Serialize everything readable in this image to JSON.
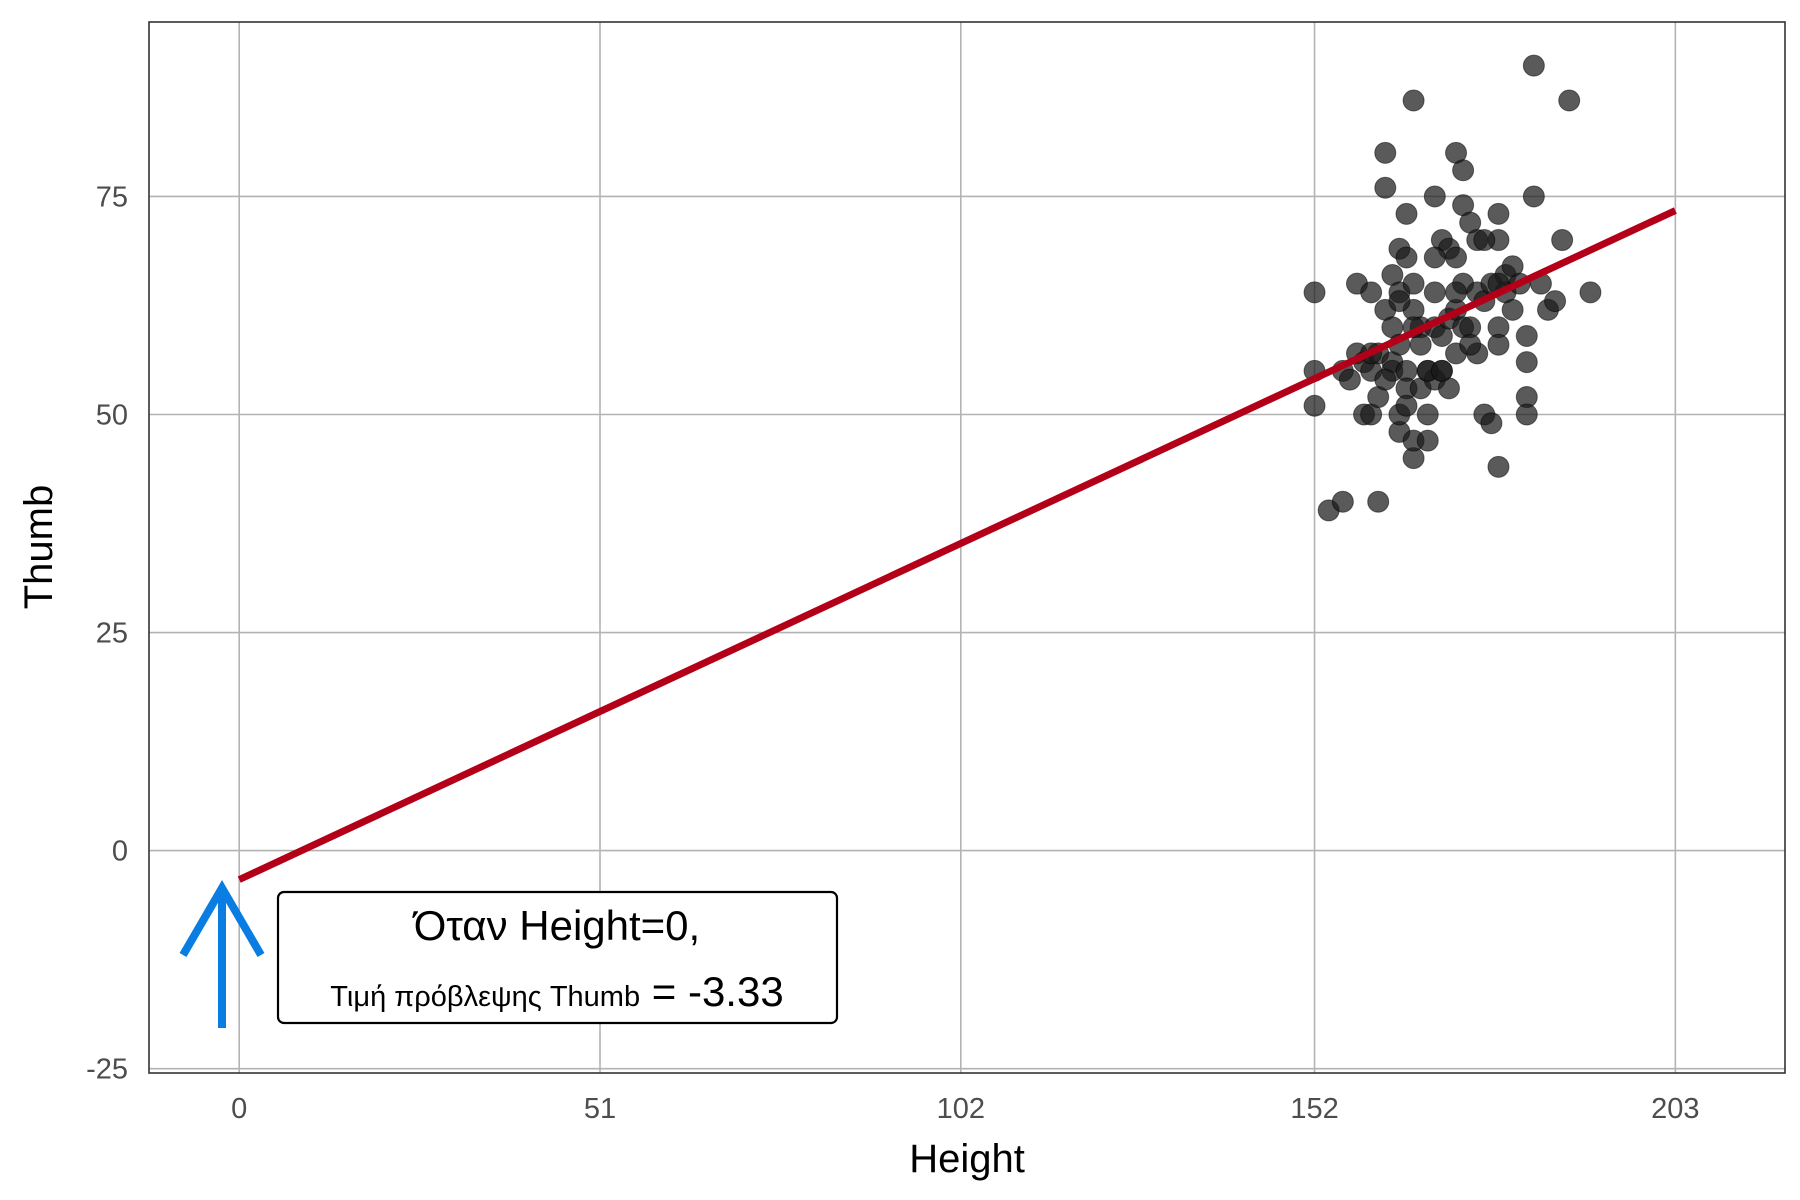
{
  "chart_data": {
    "type": "scatter",
    "xlabel": "Height",
    "ylabel": "Thumb",
    "xlim": [
      -12.75,
      218.5
    ],
    "ylim": [
      -25.5,
      95
    ],
    "xticks": [
      0,
      51,
      102,
      152,
      203
    ],
    "yticks": [
      -25,
      0,
      25,
      50,
      75
    ],
    "grid": true,
    "points": [
      [
        152,
        55
      ],
      [
        152,
        51
      ],
      [
        152,
        64
      ],
      [
        154,
        39
      ],
      [
        156,
        40
      ],
      [
        156,
        55
      ],
      [
        157,
        54
      ],
      [
        158,
        65
      ],
      [
        158,
        57
      ],
      [
        159,
        50
      ],
      [
        159,
        56
      ],
      [
        160,
        55
      ],
      [
        160,
        64
      ],
      [
        160,
        50
      ],
      [
        161,
        57
      ],
      [
        161,
        52
      ],
      [
        161,
        40
      ],
      [
        162,
        80
      ],
      [
        162,
        76
      ],
      [
        162,
        62
      ],
      [
        163,
        60
      ],
      [
        163,
        66
      ],
      [
        163,
        56
      ],
      [
        163,
        55
      ],
      [
        164,
        69
      ],
      [
        164,
        64
      ],
      [
        164,
        58
      ],
      [
        164,
        48
      ],
      [
        164,
        50
      ],
      [
        165,
        73
      ],
      [
        165,
        68
      ],
      [
        165,
        55
      ],
      [
        165,
        53
      ],
      [
        165,
        51
      ],
      [
        166,
        86
      ],
      [
        166,
        62
      ],
      [
        166,
        65
      ],
      [
        166,
        45
      ],
      [
        166,
        47
      ],
      [
        167,
        60
      ],
      [
        167,
        58
      ],
      [
        167,
        53
      ],
      [
        168,
        47
      ],
      [
        168,
        55
      ],
      [
        168,
        50
      ],
      [
        169,
        75
      ],
      [
        169,
        64
      ],
      [
        169,
        60
      ],
      [
        169,
        54
      ],
      [
        170,
        70
      ],
      [
        170,
        59
      ],
      [
        170,
        55
      ],
      [
        171,
        69
      ],
      [
        171,
        61
      ],
      [
        171,
        53
      ],
      [
        172,
        80
      ],
      [
        172,
        68
      ],
      [
        172,
        62
      ],
      [
        172,
        57
      ],
      [
        173,
        78
      ],
      [
        173,
        74
      ],
      [
        173,
        65
      ],
      [
        173,
        60
      ],
      [
        174,
        72
      ],
      [
        174,
        60
      ],
      [
        175,
        70
      ],
      [
        175,
        64
      ],
      [
        175,
        57
      ],
      [
        176,
        50
      ],
      [
        176,
        63
      ],
      [
        177,
        49
      ],
      [
        177,
        65
      ],
      [
        178,
        73
      ],
      [
        178,
        70
      ],
      [
        178,
        60
      ],
      [
        178,
        58
      ],
      [
        178,
        44
      ],
      [
        179,
        66
      ],
      [
        179,
        64
      ],
      [
        180,
        67
      ],
      [
        180,
        62
      ],
      [
        181,
        65
      ],
      [
        182,
        59
      ],
      [
        182,
        56
      ],
      [
        182,
        52
      ],
      [
        182,
        50
      ],
      [
        183,
        75
      ],
      [
        184,
        65
      ],
      [
        185,
        62
      ],
      [
        186,
        63
      ],
      [
        187,
        70
      ],
      [
        188,
        86
      ],
      [
        191,
        64
      ],
      [
        183,
        90
      ],
      [
        168,
        55
      ],
      [
        160,
        57
      ],
      [
        164,
        63
      ],
      [
        172,
        64
      ],
      [
        176,
        70
      ],
      [
        166,
        60
      ],
      [
        169,
        68
      ],
      [
        174,
        58
      ],
      [
        162,
        54
      ],
      [
        170,
        55
      ],
      [
        178,
        65
      ]
    ],
    "regression": {
      "intercept": -3.33,
      "slope": 0.3779,
      "x_start": 0,
      "x_end": 203,
      "color": "#b30018"
    },
    "point_color": "#1a1a1a",
    "arrow_color": "#0a7de3"
  },
  "annotation": {
    "line1_part1": "Όταν",
    "line1_part2": "Height=0,",
    "line2_part1": "Τιμή πρόβλεψης Thumb",
    "line2_part2": "= -3.33"
  }
}
